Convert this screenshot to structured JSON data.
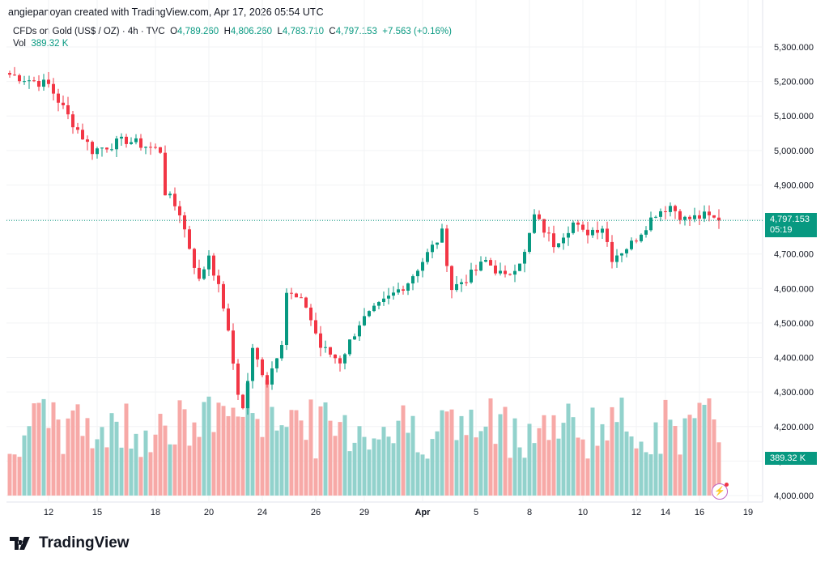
{
  "header": "angiepanoyan created with TradingView.com, Apr 17, 2026 05:54 UTC",
  "legend": {
    "symbol": "CFDs on Gold (US$ / OZ) · 4h · TVC",
    "o_label": "O",
    "o": "4,789.260",
    "h_label": "H",
    "h": "4,806.260",
    "l_label": "L",
    "l": "4,783.710",
    "c_label": "C",
    "c": "4,797.153",
    "change": "+7.563 (+0.16%)",
    "vol_label": "Vol",
    "vol": "389.32 K"
  },
  "price_label": {
    "price": "4,797.153",
    "countdown": "05:19"
  },
  "volume_label": "389.32 K",
  "logo": "TradingView",
  "colors": {
    "up": "#089981",
    "down": "#f23645",
    "up_vol": "#92d2cc",
    "down_vol": "#f7a9a7"
  },
  "chart_data": {
    "type": "candlestick",
    "title": "CFDs on Gold (US$ / OZ) · 4h · TVC",
    "ylim": [
      4000,
      5300
    ],
    "y_ticks": [
      "5,300.000",
      "5,200.000",
      "5,100.000",
      "5,000.000",
      "4,900.000",
      "4,800.000",
      "4,700.000",
      "4,600.000",
      "4,500.000",
      "4,400.000",
      "4,300.000",
      "4,200.000",
      "4,100.000",
      "4,000.000"
    ],
    "y_tick_values": [
      5300,
      5200,
      5100,
      5000,
      4900,
      4800,
      4700,
      4600,
      4500,
      4400,
      4300,
      4200,
      4100,
      4000
    ],
    "x_ticks": [
      "12",
      "15",
      "18",
      "20",
      "24",
      "26",
      "29",
      "Apr",
      "5",
      "8",
      "10",
      "12",
      "14",
      "16",
      "19"
    ],
    "x_tick_bar_index": [
      8,
      18,
      30,
      41,
      52,
      63,
      73,
      85,
      96,
      107,
      118,
      129,
      135,
      142,
      152
    ],
    "bar_count": 147,
    "close_keypoints": [
      [
        0,
        5220
      ],
      [
        8,
        5190
      ],
      [
        12,
        5100
      ],
      [
        17,
        5000
      ],
      [
        24,
        5030
      ],
      [
        31,
        5000
      ],
      [
        32,
        4880
      ],
      [
        35,
        4820
      ],
      [
        37,
        4720
      ],
      [
        39,
        4620
      ],
      [
        41,
        4700
      ],
      [
        44,
        4550
      ],
      [
        47,
        4300
      ],
      [
        48,
        4250
      ],
      [
        50,
        4420
      ],
      [
        53,
        4330
      ],
      [
        56,
        4450
      ],
      [
        57,
        4590
      ],
      [
        61,
        4550
      ],
      [
        64,
        4430
      ],
      [
        68,
        4390
      ],
      [
        72,
        4500
      ],
      [
        77,
        4560
      ],
      [
        82,
        4620
      ],
      [
        85,
        4680
      ],
      [
        89,
        4760
      ],
      [
        91,
        4600
      ],
      [
        95,
        4640
      ],
      [
        98,
        4680
      ],
      [
        102,
        4630
      ],
      [
        106,
        4700
      ],
      [
        108,
        4810
      ],
      [
        112,
        4730
      ],
      [
        116,
        4790
      ],
      [
        118,
        4760
      ],
      [
        122,
        4780
      ],
      [
        124,
        4690
      ],
      [
        128,
        4730
      ],
      [
        133,
        4820
      ],
      [
        136,
        4840
      ],
      [
        139,
        4800
      ],
      [
        143,
        4810
      ],
      [
        146,
        4797
      ]
    ],
    "last_close": 4797.153,
    "last_volume_k": 389.32
  }
}
